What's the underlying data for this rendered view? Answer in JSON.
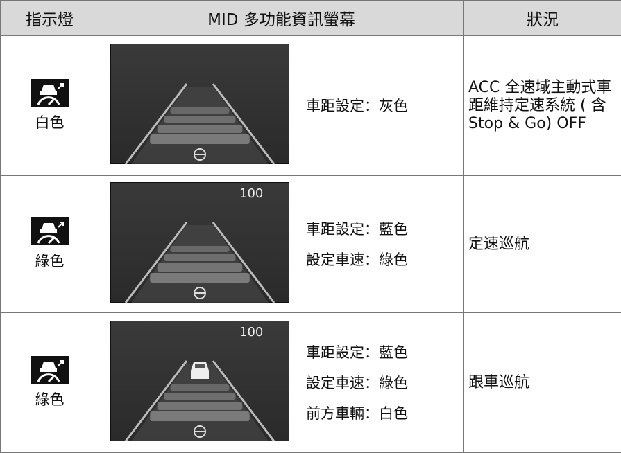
{
  "header": [
    "指示燈",
    "MID 多功能資訊螢幕",
    "狀況"
  ],
  "rows": [
    {
      "indicator": "白色",
      "settings": [
        "車距設定：灰色"
      ],
      "status": "ACC 全速域主動式車距維持定速系統 ( 含 Stop & Go) OFF"
    },
    {
      "indicator": "綠色",
      "speed": "100",
      "settings": [
        "車距設定：藍色",
        "設定車速：綠色"
      ],
      "status": "定速巡航"
    },
    {
      "indicator": "綠色",
      "speed": "100",
      "car_ahead": true,
      "settings": [
        "車距設定：藍色",
        "設定車速：綠色",
        "前方車輛：白色"
      ],
      "status": "跟車巡航"
    }
  ]
}
